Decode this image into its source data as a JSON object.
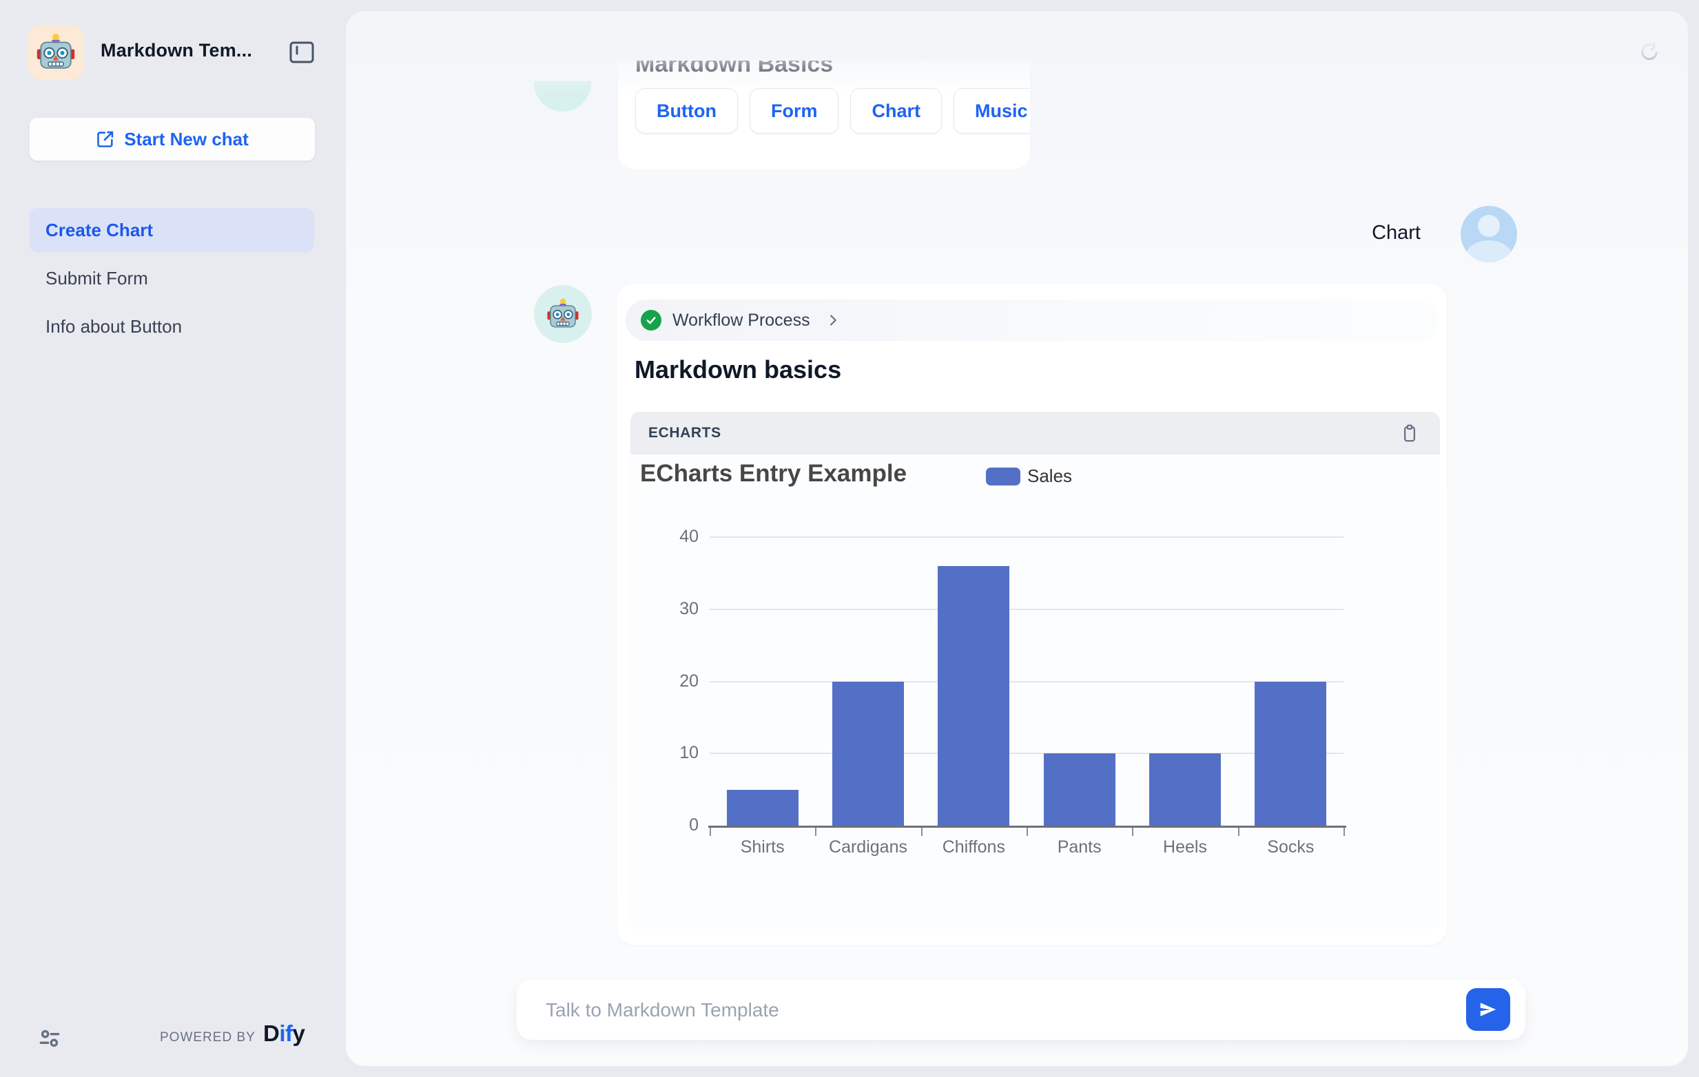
{
  "sidebar": {
    "app_title": "Markdown Tem...",
    "new_chat_label": "Start New chat",
    "conversations": [
      {
        "label": "Create Chart",
        "active": true
      },
      {
        "label": "Submit Form",
        "active": false
      },
      {
        "label": "Info about Button",
        "active": false
      }
    ],
    "powered_by_label": "POWERED BY",
    "brand": {
      "part1": "D",
      "part2": "if",
      "part3": "y"
    }
  },
  "chat": {
    "earlier_message": {
      "clipped_heading": "Markdown Basics",
      "quick_replies": [
        "Button",
        "Form",
        "Chart",
        "Music"
      ]
    },
    "user_message": {
      "text": "Chart"
    },
    "assistant_message": {
      "workflow_status_label": "Workflow Process",
      "heading": "Markdown basics",
      "code_block_language": "ECHARTS"
    }
  },
  "composer": {
    "placeholder": "Talk to Markdown Template"
  },
  "icons": {
    "robot-avatar-icon": "robot face",
    "panel-toggle-icon": "collapse sidebar",
    "new-chat-icon": "edit square",
    "settings-icon": "sliders",
    "refresh-icon": "circular restart arrow",
    "workflow-check-icon": "green check circle",
    "chevron-right-icon": "chevron right",
    "copy-icon": "clipboard",
    "send-icon": "paper plane",
    "user-avatar-icon": "person silhouette"
  },
  "colors": {
    "accent_blue": "#1C64F2",
    "send_button_blue": "#2563EB",
    "success_green": "#16A34A",
    "bar_color": "#5470C6",
    "sidebar_bg": "#E9EAF0",
    "panel_bg": "#F8FAFC"
  },
  "chart_data": {
    "type": "bar",
    "title": "ECharts Entry Example",
    "categories": [
      "Shirts",
      "Cardigans",
      "Chiffons",
      "Pants",
      "Heels",
      "Socks"
    ],
    "series": [
      {
        "name": "Sales",
        "color": "#5470C6",
        "values": [
          5,
          20,
          36,
          10,
          10,
          20
        ]
      }
    ],
    "xlabel": "",
    "ylabel": "",
    "ylim": [
      0,
      40
    ],
    "yticks": [
      0,
      10,
      20,
      30,
      40
    ],
    "grid": true,
    "legend_position": "top-center"
  }
}
